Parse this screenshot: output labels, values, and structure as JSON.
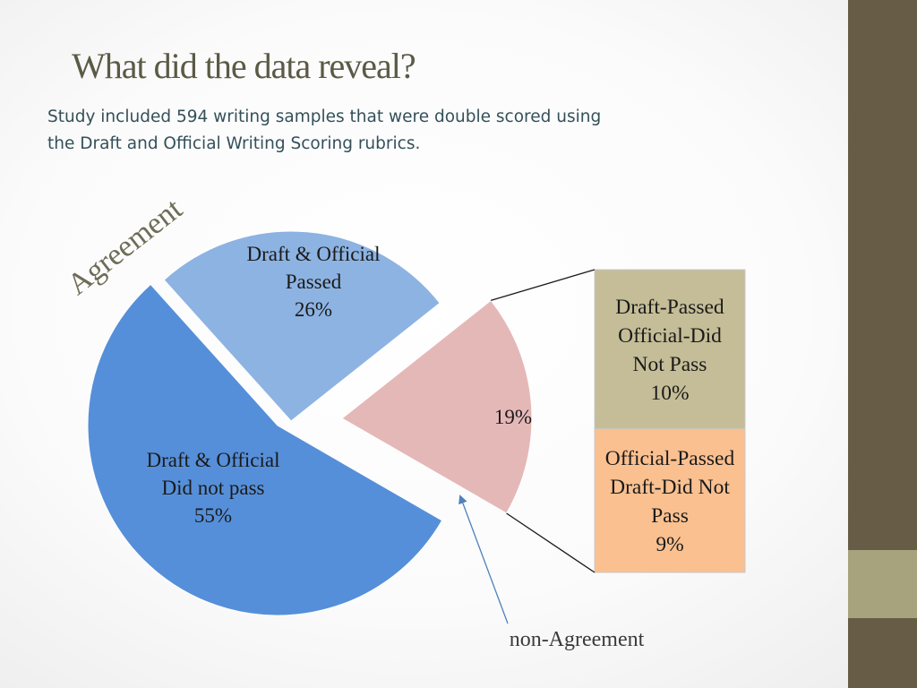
{
  "slide": {
    "title": "What did the data reveal?",
    "subtitle_lines": [
      "Study included 594 writing samples that were double scored using",
      "the Draft and Official Writing Scoring rubrics."
    ]
  },
  "chart_data": {
    "type": "pie",
    "annotations": {
      "agreement": "Agreement",
      "non_agreement": "non-Agreement"
    },
    "slices": [
      {
        "id": "did-not-pass",
        "lines": [
          "Draft & Official",
          "Did not pass",
          "55%"
        ],
        "value": 55,
        "color": "#568fd9"
      },
      {
        "id": "passed",
        "lines": [
          "Draft & Official",
          "Passed",
          "26%"
        ],
        "value": 26,
        "color": "#8db3e2"
      },
      {
        "id": "disagree",
        "lines": [
          "19%"
        ],
        "value": 19,
        "color": "#e5b8b8"
      }
    ],
    "breakdown": {
      "of": "disagree",
      "segments": [
        {
          "id": "draft-passed",
          "lines": [
            "Draft-Passed",
            "Official-Did",
            "Not Pass",
            "10%"
          ],
          "value": 10,
          "color": "#c4bd97"
        },
        {
          "id": "official-passed",
          "lines": [
            "Official-Passed",
            "Draft-Did Not",
            "Pass",
            "9%"
          ],
          "value": 9,
          "color": "#fac090"
        }
      ]
    }
  }
}
